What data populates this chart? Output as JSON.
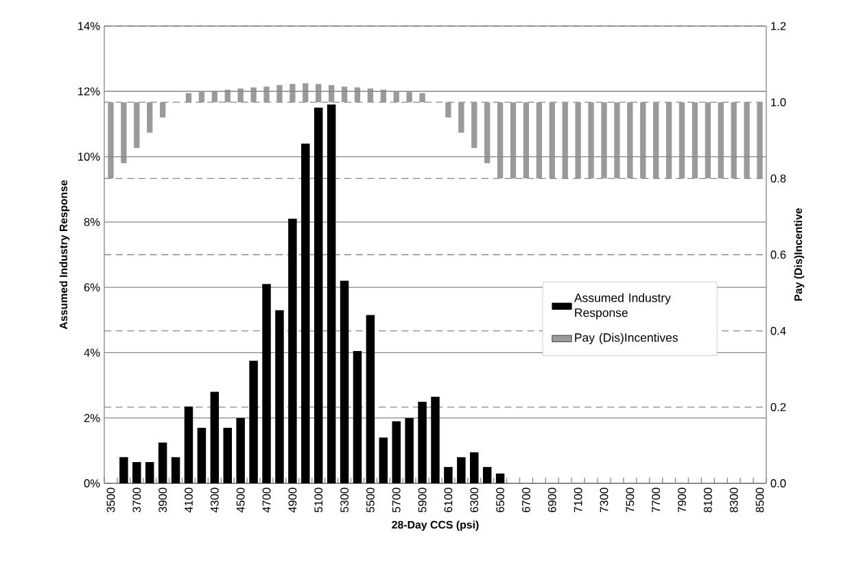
{
  "chart_data": {
    "type": "bar",
    "xlabel": "28-Day CCS (psi)",
    "ylabel": "Assumed Industry Response",
    "y2label": "Pay (Dis)Incentive",
    "categories": [
      "3500",
      null,
      "3700",
      null,
      "3900",
      null,
      "4100",
      null,
      "4300",
      null,
      "4500",
      null,
      "4700",
      null,
      "4900",
      null,
      "5100",
      null,
      "5300",
      null,
      "5500",
      null,
      "5700",
      null,
      "5900",
      null,
      "6100",
      null,
      "6300",
      null,
      "6500",
      null,
      "6700",
      null,
      "6900",
      null,
      "7100",
      null,
      "7300",
      null,
      "7500",
      null,
      "7700",
      null,
      "7900",
      null,
      "8100",
      null,
      "8300",
      null,
      "8500"
    ],
    "series": [
      {
        "name": "Assumed Industry Response",
        "color": "#000000",
        "values": [
          0,
          0.8,
          0.65,
          0.65,
          1.25,
          0.8,
          2.35,
          1.7,
          2.8,
          1.7,
          2.0,
          3.75,
          6.1,
          5.3,
          8.1,
          10.4,
          11.5,
          11.6,
          6.2,
          4.05,
          5.15,
          1.4,
          1.9,
          2.0,
          2.5,
          2.65,
          0.5,
          0.8,
          0.95,
          0.5,
          0.3,
          0,
          0,
          0,
          0,
          0,
          0,
          0,
          0,
          0,
          0,
          0,
          0,
          0,
          0,
          0,
          0,
          0,
          0,
          0,
          0
        ]
      },
      {
        "name": "Pay (Dis)Incentives",
        "color": "#9a9a9a",
        "axis": "y2",
        "values": [
          -0.2,
          -0.16,
          -0.12,
          -0.08,
          -0.04,
          null,
          0.024,
          0.027,
          0.029,
          0.033,
          0.036,
          0.039,
          0.041,
          0.045,
          0.048,
          0.05,
          0.048,
          0.045,
          0.041,
          0.039,
          0.036,
          0.033,
          0.029,
          0.027,
          0.024,
          null,
          -0.04,
          -0.08,
          -0.12,
          -0.16,
          -0.2,
          -0.2,
          -0.2,
          -0.2,
          -0.2,
          -0.2,
          -0.2,
          -0.2,
          -0.2,
          -0.2,
          -0.2,
          -0.2,
          -0.2,
          -0.2,
          -0.2,
          -0.2,
          -0.2,
          -0.2,
          -0.2,
          -0.2,
          -0.2
        ],
        "base": [
          1,
          1,
          1,
          1,
          1,
          null,
          1,
          1,
          1,
          1,
          1,
          1,
          1,
          1,
          1,
          1,
          1,
          1,
          1,
          1,
          1,
          1,
          1,
          1,
          1,
          null,
          1,
          1,
          1,
          1,
          1,
          1,
          1,
          1,
          1,
          1,
          1,
          1,
          1,
          1,
          1,
          1,
          1,
          1,
          1,
          1,
          1,
          1,
          1,
          1,
          1
        ]
      }
    ],
    "ylim": [
      0,
      14
    ],
    "yticks": [
      {
        "value": 0,
        "label": "0%"
      },
      {
        "value": 2,
        "label": "2%"
      },
      {
        "value": 4,
        "label": "4%"
      },
      {
        "value": 6,
        "label": "6%"
      },
      {
        "value": 8,
        "label": "8%"
      },
      {
        "value": 10,
        "label": "10%"
      },
      {
        "value": 12,
        "label": "12%"
      },
      {
        "value": 14,
        "label": "14%"
      }
    ],
    "y2lim": [
      0,
      1.2
    ],
    "y2ticks": [
      {
        "value": 0,
        "label": "0.0"
      },
      {
        "value": 0.2,
        "label": "0.2"
      },
      {
        "value": 0.4,
        "label": "0.4"
      },
      {
        "value": 0.6,
        "label": "0.6"
      },
      {
        "value": 0.8,
        "label": "0.8"
      },
      {
        "value": 1,
        "label": "1.0"
      },
      {
        "value": 1.2,
        "label": "1.2"
      }
    ],
    "grid": "y",
    "legend": "right"
  }
}
